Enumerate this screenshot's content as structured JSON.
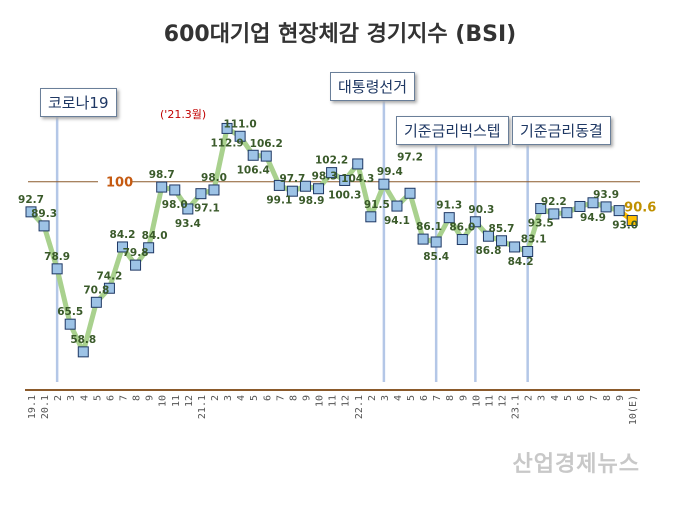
{
  "chart_data": {
    "type": "line",
    "title": "600대기업 현장체감 경기지수 (BSI)",
    "categories": [
      "19.1",
      "20.1",
      "2",
      "3",
      "4",
      "5",
      "6",
      "7",
      "8",
      "9",
      "10",
      "11",
      "12",
      "21.1",
      "2",
      "3",
      "4",
      "5",
      "6",
      "7",
      "8",
      "9",
      "10",
      "11",
      "12",
      "22.1",
      "2",
      "3",
      "4",
      "5",
      "6",
      "7",
      "8",
      "9",
      "10",
      "11",
      "12",
      "23.1",
      "2",
      "3",
      "4",
      "5",
      "6",
      "7",
      "8",
      "9",
      "10(E)"
    ],
    "values": [
      92.7,
      89.3,
      78.9,
      65.5,
      58.8,
      70.8,
      74.2,
      84.2,
      79.8,
      84.0,
      98.7,
      98.0,
      93.4,
      97.1,
      98.0,
      112.9,
      111.0,
      106.4,
      106.2,
      99.1,
      97.7,
      98.9,
      98.3,
      102.2,
      100.3,
      104.3,
      91.5,
      99.4,
      94.1,
      97.2,
      86.1,
      85.4,
      91.3,
      86.0,
      90.3,
      86.8,
      85.7,
      84.2,
      83.1,
      93.5,
      92.2,
      92.5,
      94.0,
      94.9,
      93.9,
      93.0,
      90.6
    ],
    "value_labels": [
      "92.7",
      "89.3",
      "78.9",
      "65.5",
      "58.8",
      "70.8",
      "74.2",
      "84.2",
      "79.8",
      "84.0",
      "98.7",
      "98.0",
      "93.4",
      "97.1",
      "98.0",
      "112.9",
      "111.0",
      "106.4",
      "106.2",
      "99.1",
      "97.7",
      "98.9",
      "98.3",
      "102.2",
      "100.3",
      "104.3",
      "91.5",
      "99.4",
      "94.1",
      "97.2",
      "86.1",
      "85.4",
      "91.3",
      "86.0",
      "90.3",
      "86.8",
      "85.7",
      "84.2",
      "83.1",
      "93.5",
      "92.2",
      "",
      "",
      "94.9",
      "93.9",
      "93.0",
      "90.6"
    ],
    "reference_line": {
      "value": 100,
      "label": "100"
    },
    "events": [
      {
        "label": "코로나19",
        "at": "20.2"
      },
      {
        "label": "대통령선거",
        "at": "22.3"
      },
      {
        "label": "기준금리빅스텝",
        "at": "22.7"
      },
      {
        "label": "",
        "at": "22.10"
      },
      {
        "label": "기준금리동결",
        "at": "23.2"
      }
    ],
    "annotation": "('21.3월)",
    "ylim": [
      50,
      120
    ],
    "grid": false,
    "colors": {
      "line": "#a9d18e",
      "marker": "#9dc3e6",
      "marker_border": "#1f3864",
      "estimate_marker": "#ffc000",
      "reference": "#8b5a2b",
      "event_line": "#b4c7e7",
      "label": "#3a5a2a"
    }
  },
  "watermark": "산업경제뉴스"
}
